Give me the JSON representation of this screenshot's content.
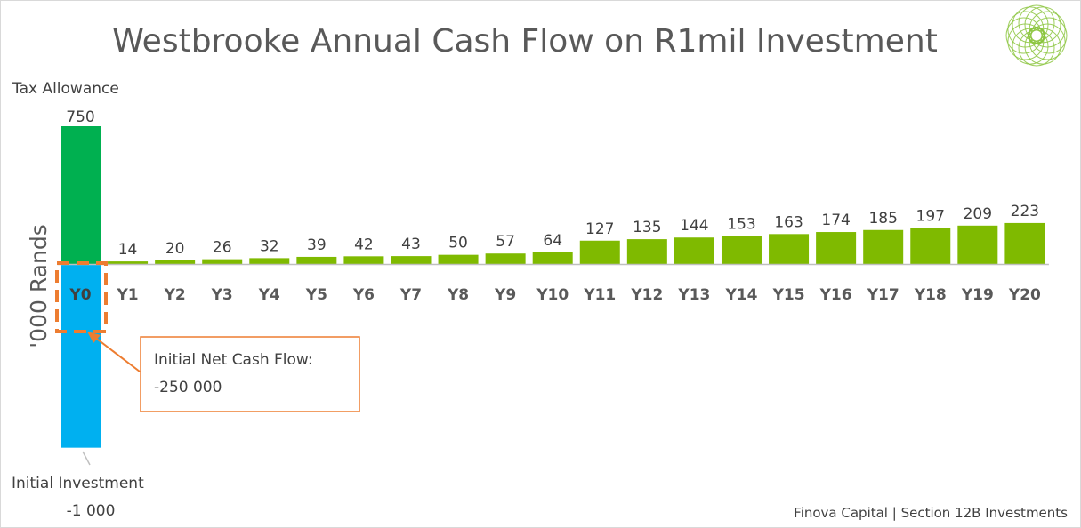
{
  "chart_data": {
    "type": "bar",
    "title": "Westbrooke Annual Cash Flow on R1mil Investment",
    "ylabel": "'000 Rands",
    "categories": [
      "Y0",
      "Y1",
      "Y2",
      "Y3",
      "Y4",
      "Y5",
      "Y6",
      "Y7",
      "Y8",
      "Y9",
      "Y10",
      "Y11",
      "Y12",
      "Y13",
      "Y14",
      "Y15",
      "Y16",
      "Y17",
      "Y18",
      "Y19",
      "Y20"
    ],
    "series": [
      {
        "values": [
          0,
          14,
          20,
          26,
          32,
          39,
          42,
          43,
          50,
          57,
          64,
          127,
          135,
          144,
          153,
          163,
          174,
          185,
          197,
          209,
          223
        ]
      }
    ],
    "y0_components": {
      "tax_allowance": {
        "label": "Tax Allowance",
        "value": 750,
        "value_label": "750"
      },
      "initial_investment": {
        "label": "Initial Investment",
        "value": -1000,
        "value_label": "-1 000"
      }
    },
    "ylim": [
      -1000,
      750
    ],
    "grid": false,
    "legend": "none"
  },
  "annotation": {
    "line1": "Initial Net Cash Flow:",
    "line2": "-250 000"
  },
  "footer": "Finova Capital | Section 12B Investments",
  "colors": {
    "green_bar": "#7fba00",
    "tax_allowance": "#00b050",
    "initial_investment": "#00b0f0",
    "highlight_box": "#ed7d31",
    "axis": "#bfbfbf",
    "logo": "#8cc63f"
  },
  "logo_icon": "geometric-flower-logo-icon"
}
